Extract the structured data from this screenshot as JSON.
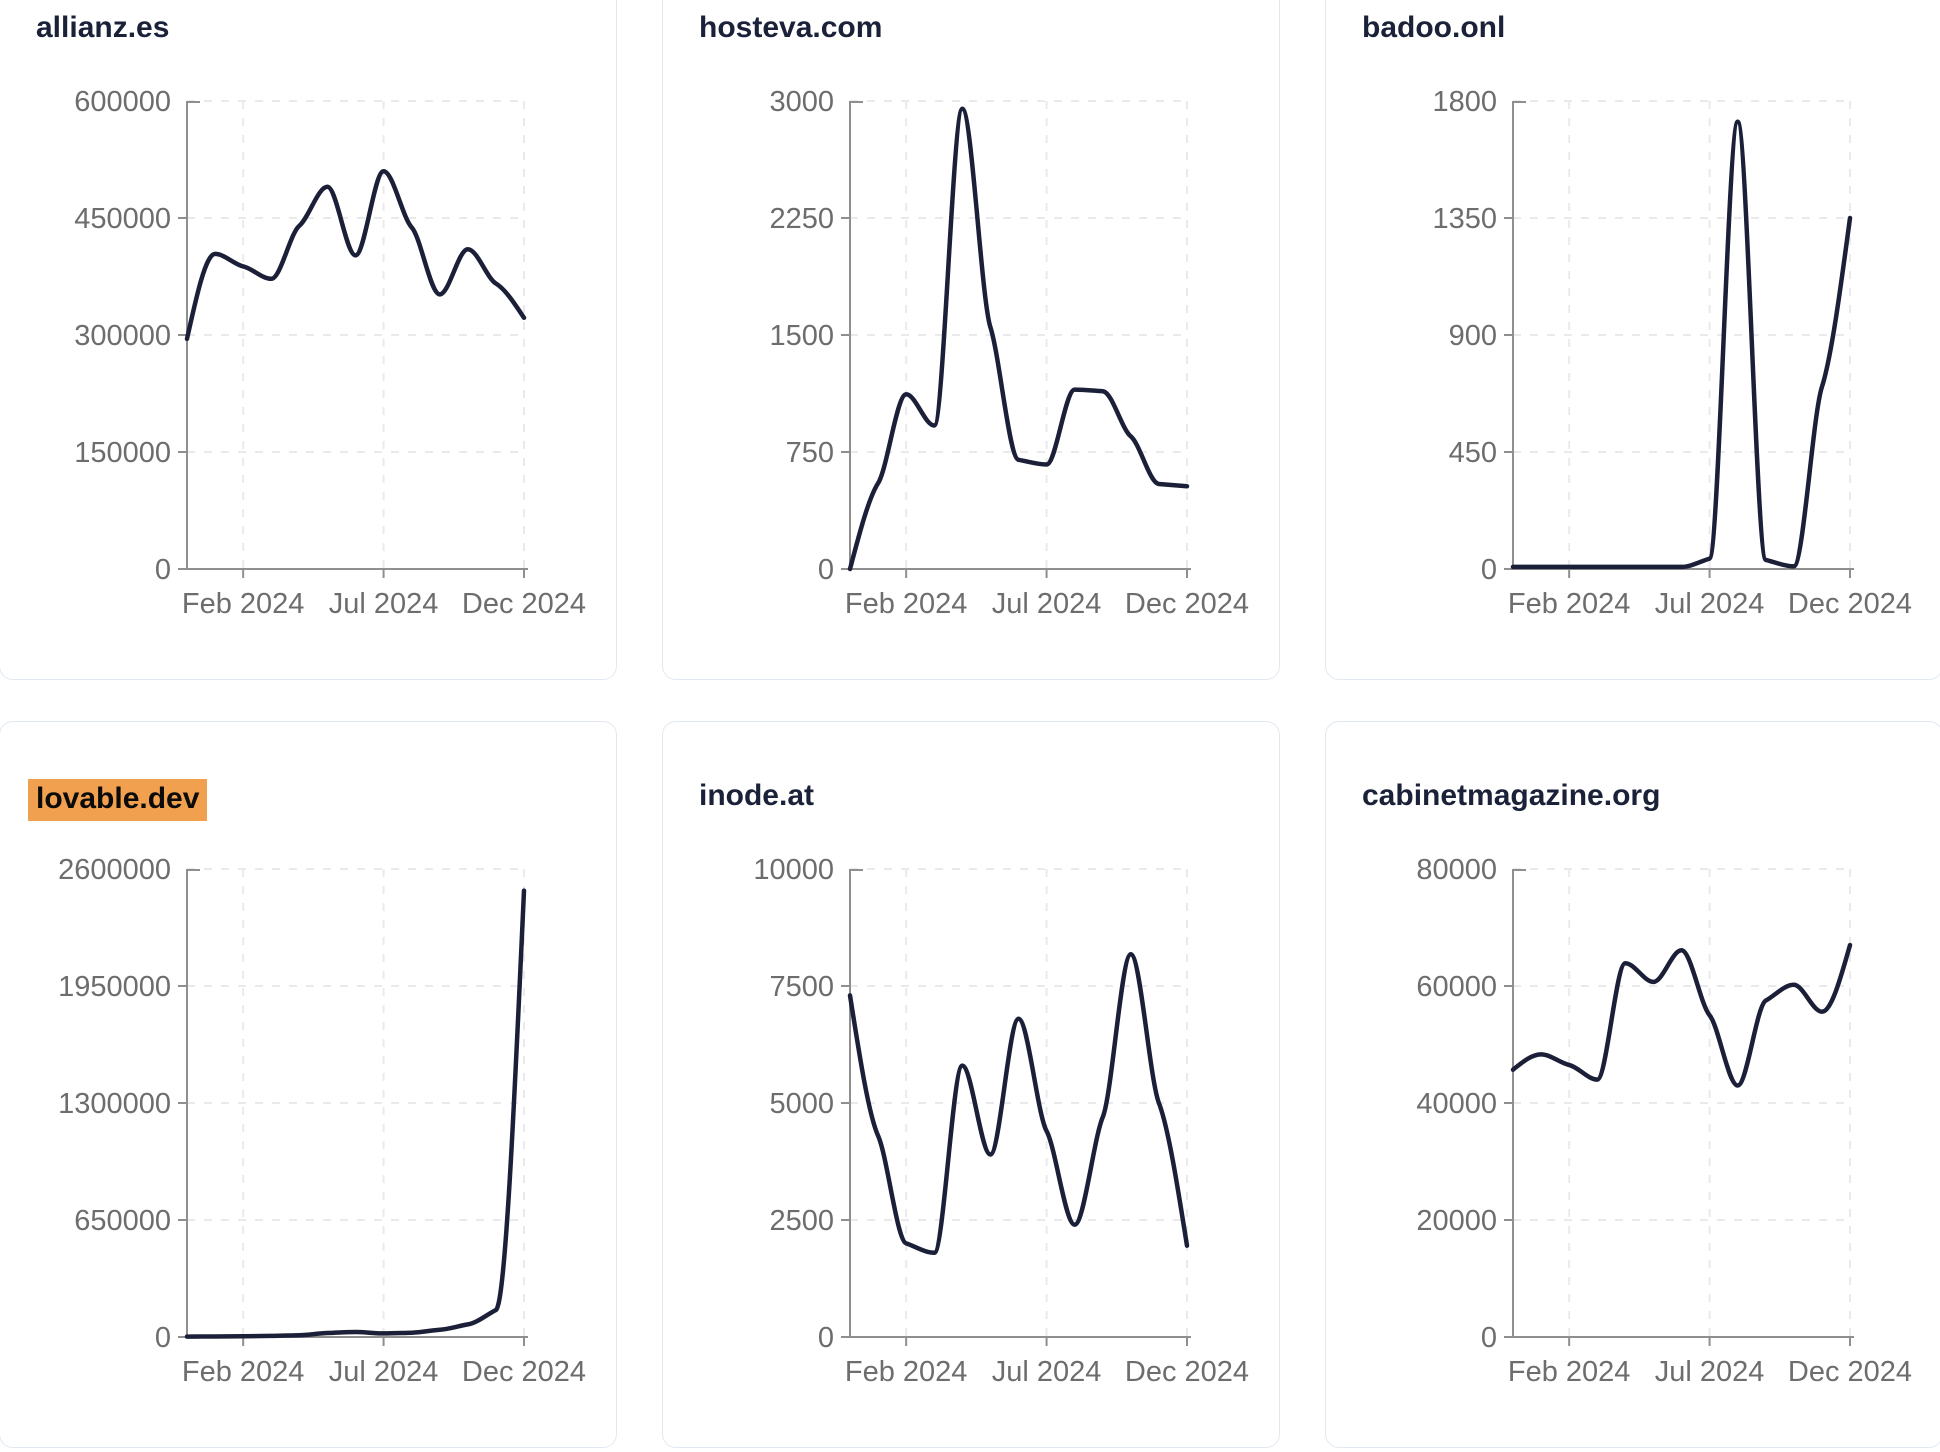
{
  "theme": {
    "background": "#ffffff",
    "line_color": "#1b2038",
    "title_color": "#1a2138",
    "tick_color": "#6d6d6d",
    "axis_color": "#8f8f8f",
    "grid_color": "#eaeaec",
    "card_border": "#e2e8f0",
    "highlight_color": "#f0a04e"
  },
  "cards": [
    {
      "title": "allianz.es",
      "highlighted": false
    },
    {
      "title": "hosteva.com",
      "highlighted": false
    },
    {
      "title": "badoo.onl",
      "highlighted": false
    },
    {
      "title": "lovable.dev",
      "highlighted": true
    },
    {
      "title": "inode.at",
      "highlighted": false
    },
    {
      "title": "cabinetmagazine.org",
      "highlighted": false
    }
  ],
  "chart_data": [
    {
      "type": "line",
      "title": "allianz.es",
      "x": [
        "Dec 2023",
        "Jan 2024",
        "Feb 2024",
        "Mar 2024",
        "Apr 2024",
        "May 2024",
        "Jun 2024",
        "Jul 2024",
        "Aug 2024",
        "Sep 2024",
        "Oct 2024",
        "Nov 2024",
        "Dec 2024"
      ],
      "values": [
        295000,
        404000,
        388000,
        372000,
        440000,
        490000,
        402000,
        510000,
        438000,
        352000,
        410000,
        366000,
        322000
      ],
      "y_ticks": [
        0,
        150000,
        300000,
        450000,
        600000
      ],
      "ylim": [
        0,
        600000
      ],
      "x_tick_labels": [
        "Feb 2024",
        "Jul 2024",
        "Dec 2024"
      ],
      "x_tick_positions": [
        2,
        7,
        12
      ],
      "grid": true,
      "legend": false
    },
    {
      "type": "line",
      "title": "hosteva.com",
      "x": [
        "Dec 2023",
        "Jan 2024",
        "Feb 2024",
        "Mar 2024",
        "Apr 2024",
        "May 2024",
        "Jun 2024",
        "Jul 2024",
        "Aug 2024",
        "Sep 2024",
        "Oct 2024",
        "Nov 2024",
        "Dec 2024"
      ],
      "values": [
        0,
        550,
        1120,
        920,
        2950,
        1550,
        700,
        670,
        1150,
        1140,
        850,
        545,
        530
      ],
      "y_ticks": [
        0,
        750,
        1500,
        2250,
        3000
      ],
      "ylim": [
        0,
        3000
      ],
      "x_tick_labels": [
        "Feb 2024",
        "Jul 2024",
        "Dec 2024"
      ],
      "x_tick_positions": [
        2,
        7,
        12
      ],
      "grid": true,
      "legend": false
    },
    {
      "type": "line",
      "title": "badoo.onl",
      "x": [
        "Dec 2023",
        "Jan 2024",
        "Feb 2024",
        "Mar 2024",
        "Apr 2024",
        "May 2024",
        "Jun 2024",
        "Jul 2024",
        "Aug 2024",
        "Sep 2024",
        "Oct 2024",
        "Nov 2024",
        "Dec 2024"
      ],
      "values": [
        8,
        8,
        8,
        8,
        8,
        8,
        8,
        40,
        1720,
        35,
        10,
        700,
        1350
      ],
      "y_ticks": [
        0,
        450,
        900,
        1350,
        1800
      ],
      "ylim": [
        0,
        1800
      ],
      "x_tick_labels": [
        "Feb 2024",
        "Jul 2024",
        "Dec 2024"
      ],
      "x_tick_positions": [
        2,
        7,
        12
      ],
      "grid": true,
      "legend": false
    },
    {
      "type": "line",
      "title": "lovable.dev",
      "x": [
        "Dec 2023",
        "Jan 2024",
        "Feb 2024",
        "Mar 2024",
        "Apr 2024",
        "May 2024",
        "Jun 2024",
        "Jul 2024",
        "Aug 2024",
        "Sep 2024",
        "Oct 2024",
        "Nov 2024",
        "Dec 2024"
      ],
      "values": [
        2000,
        3000,
        4000,
        6000,
        10000,
        22000,
        28000,
        20000,
        24000,
        40000,
        70000,
        150000,
        2480000
      ],
      "y_ticks": [
        0,
        650000,
        1300000,
        1950000,
        2600000
      ],
      "ylim": [
        0,
        2600000
      ],
      "x_tick_labels": [
        "Feb 2024",
        "Jul 2024",
        "Dec 2024"
      ],
      "x_tick_positions": [
        2,
        7,
        12
      ],
      "grid": true,
      "legend": false
    },
    {
      "type": "line",
      "title": "inode.at",
      "x": [
        "Dec 2023",
        "Jan 2024",
        "Feb 2024",
        "Mar 2024",
        "Apr 2024",
        "May 2024",
        "Jun 2024",
        "Jul 2024",
        "Aug 2024",
        "Sep 2024",
        "Oct 2024",
        "Nov 2024",
        "Dec 2024"
      ],
      "values": [
        7300,
        4300,
        2000,
        1800,
        5800,
        3900,
        6800,
        4400,
        2400,
        4700,
        8180,
        5000,
        1950
      ],
      "y_ticks": [
        0,
        2500,
        5000,
        7500,
        10000
      ],
      "ylim": [
        0,
        10000
      ],
      "x_tick_labels": [
        "Feb 2024",
        "Jul 2024",
        "Dec 2024"
      ],
      "x_tick_positions": [
        2,
        7,
        12
      ],
      "grid": true,
      "legend": false
    },
    {
      "type": "line",
      "title": "cabinetmagazine.org",
      "x": [
        "Dec 2023",
        "Jan 2024",
        "Feb 2024",
        "Mar 2024",
        "Apr 2024",
        "May 2024",
        "Jun 2024",
        "Jul 2024",
        "Aug 2024",
        "Sep 2024",
        "Oct 2024",
        "Nov 2024",
        "Dec 2024"
      ],
      "values": [
        45700,
        48300,
        46500,
        44000,
        63900,
        60700,
        66100,
        55000,
        43000,
        57500,
        60200,
        55600,
        67000
      ],
      "y_ticks": [
        0,
        20000,
        40000,
        60000,
        80000
      ],
      "ylim": [
        0,
        80000
      ],
      "x_tick_labels": [
        "Feb 2024",
        "Jul 2024",
        "Dec 2024"
      ],
      "x_tick_positions": [
        2,
        7,
        12
      ],
      "grid": true,
      "legend": false
    }
  ]
}
